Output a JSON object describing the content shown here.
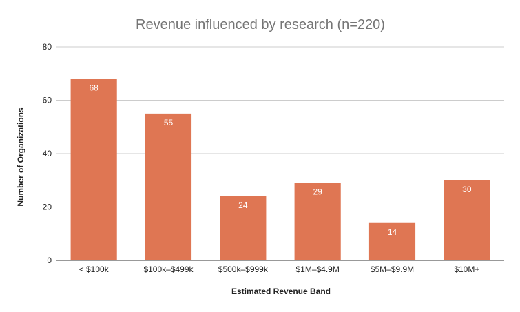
{
  "chart_data": {
    "type": "bar",
    "title": "Revenue influenced by research (n=220)",
    "xlabel": "Estimated Revenue Band",
    "ylabel": "Number of Organizations",
    "categories": [
      "< $100k",
      "$100k–$499k",
      "$500k–$999k",
      "$1M–$4.9M",
      "$5M–$9.9M",
      "$10M+"
    ],
    "values": [
      68,
      55,
      24,
      29,
      14,
      30
    ],
    "ylim": [
      0,
      80
    ],
    "yticks": [
      0,
      20,
      40,
      60,
      80
    ],
    "grid": true,
    "legend": "none",
    "data_labels": true,
    "colors": {
      "bar": "#df7653",
      "grid": "#cccccc",
      "title": "#757575"
    }
  }
}
